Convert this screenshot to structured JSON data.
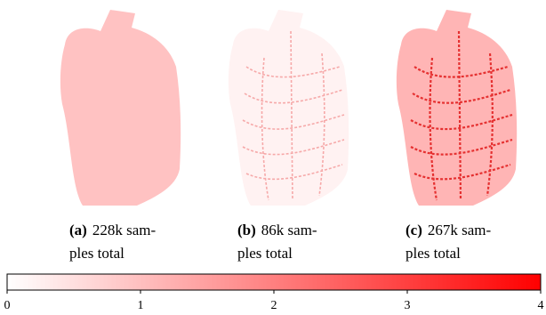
{
  "panels": [
    {
      "label": "(a)",
      "caption": [
        "228k sam-",
        "ples total"
      ],
      "fill": "#ffc2c2",
      "detail": "#ffc2c2"
    },
    {
      "label": "(b)",
      "caption": [
        "86k sam-",
        "ples total"
      ],
      "fill": "#fff2f2",
      "detail": "#f6a9a9"
    },
    {
      "label": "(c)",
      "caption": [
        "267k sam-",
        "ples total"
      ],
      "fill": "#ffb5b5",
      "detail": "#e53030"
    }
  ],
  "colorbar": {
    "colors": [
      "#ffffff",
      "#ff0000"
    ],
    "lim": [
      0,
      4
    ],
    "ticks": [
      0,
      1,
      2,
      3,
      4
    ]
  }
}
